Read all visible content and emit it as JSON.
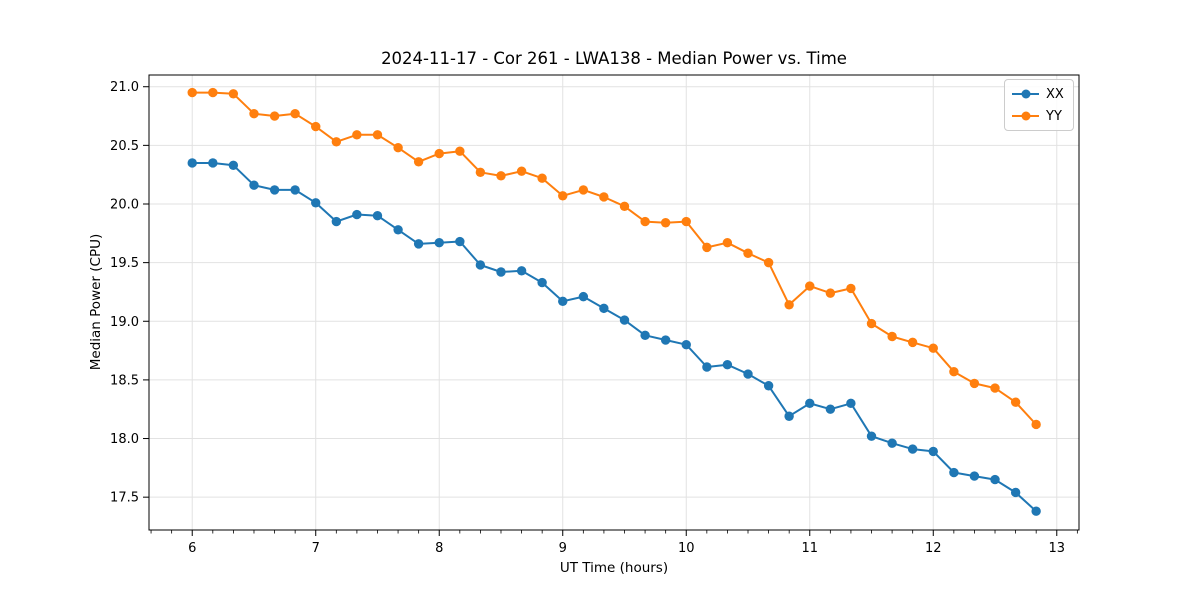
{
  "chart_data": {
    "type": "line",
    "title": "2024-11-17 - Cor 261 - LWA138 - Median Power vs. Time",
    "xlabel": "UT Time (hours)",
    "ylabel": "Median Power (CPU)",
    "xlim": [
      5.65,
      13.18
    ],
    "ylim": [
      17.22,
      21.1
    ],
    "grid": true,
    "legend_position": "upper right",
    "x_major_ticks": [
      6,
      7,
      8,
      9,
      10,
      11,
      12,
      13
    ],
    "x_tick_labels": [
      "6",
      "7",
      "8",
      "9",
      "10",
      "11",
      "12",
      "13"
    ],
    "x_minor_step": 0.1666667,
    "y_major_ticks": [
      17.5,
      18.0,
      18.5,
      19.0,
      19.5,
      20.0,
      20.5,
      21.0
    ],
    "y_tick_labels": [
      "17.5",
      "18.0",
      "18.5",
      "19.0",
      "19.5",
      "20.0",
      "20.5",
      "21.0"
    ],
    "x": [
      6.0,
      6.167,
      6.333,
      6.5,
      6.667,
      6.833,
      7.0,
      7.167,
      7.333,
      7.5,
      7.667,
      7.833,
      8.0,
      8.167,
      8.333,
      8.5,
      8.667,
      8.833,
      9.0,
      9.167,
      9.333,
      9.5,
      9.667,
      9.833,
      10.0,
      10.167,
      10.333,
      10.5,
      10.667,
      10.833,
      11.0,
      11.167,
      11.333,
      11.5,
      11.667,
      11.833,
      12.0,
      12.167,
      12.333,
      12.5,
      12.667,
      12.833
    ],
    "series": [
      {
        "name": "XX",
        "color": "#1f77b4",
        "marker": "circle",
        "values": [
          20.35,
          20.35,
          20.33,
          20.16,
          20.12,
          20.12,
          20.01,
          19.85,
          19.91,
          19.9,
          19.78,
          19.66,
          19.67,
          19.68,
          19.48,
          19.42,
          19.43,
          19.33,
          19.17,
          19.21,
          19.11,
          19.01,
          18.88,
          18.84,
          18.8,
          18.61,
          18.63,
          18.55,
          18.45,
          18.19,
          18.3,
          18.25,
          18.3,
          18.02,
          17.96,
          17.91,
          17.89,
          17.71,
          17.68,
          17.65,
          17.54,
          17.38
        ]
      },
      {
        "name": "YY",
        "color": "#ff7f0e",
        "marker": "circle",
        "values": [
          20.95,
          20.95,
          20.94,
          20.77,
          20.75,
          20.77,
          20.66,
          20.53,
          20.59,
          20.59,
          20.48,
          20.36,
          20.43,
          20.45,
          20.27,
          20.24,
          20.28,
          20.22,
          20.07,
          20.12,
          20.06,
          19.98,
          19.85,
          19.84,
          19.85,
          19.63,
          19.67,
          19.58,
          19.5,
          19.14,
          19.3,
          19.24,
          19.28,
          18.98,
          18.87,
          18.82,
          18.77,
          18.57,
          18.47,
          18.43,
          18.31,
          18.12
        ]
      }
    ]
  },
  "colors": {
    "background": "#ffffff",
    "grid": "#e2e2e2",
    "spine": "#000000",
    "tick": "#000000",
    "legend_border": "#cccccc"
  }
}
